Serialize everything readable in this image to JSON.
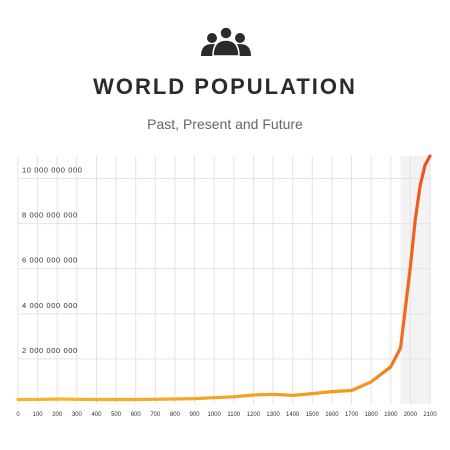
{
  "header": {
    "icon": "people-group-icon",
    "title": "WORLD POPULATION",
    "subtitle": "Past, Present and Future"
  },
  "chart_data": {
    "type": "line",
    "title": "WORLD POPULATION",
    "subtitle": "Past, Present and Future",
    "xlabel": "",
    "ylabel": "",
    "x_ticks": [
      "0",
      "100",
      "200",
      "300",
      "400",
      "500",
      "600",
      "700",
      "800",
      "900",
      "1000",
      "1100",
      "1200",
      "1300",
      "1400",
      "1500",
      "1600",
      "1700",
      "1800",
      "1900",
      "2000",
      "2100"
    ],
    "y_ticks": [
      "2 000 000 000",
      "4 000 000 000",
      "6 000 000 000",
      "8 000 000 000",
      "10 000 000 000"
    ],
    "xlim": [
      0,
      2100
    ],
    "ylim": [
      0,
      11000000000
    ],
    "grid": true,
    "highlight_region": [
      1950,
      2100
    ],
    "colors": {
      "line_start": "#f5b82e",
      "line_end": "#e8361f",
      "grid": "#e3e3e3",
      "highlight": "#f3f3f3"
    },
    "series": [
      {
        "x": [
          0,
          100,
          200,
          300,
          400,
          500,
          600,
          700,
          800,
          900,
          1000,
          1100,
          1200,
          1300,
          1400,
          1500,
          1600,
          1700,
          1800,
          1900,
          1950,
          2000,
          2025,
          2050,
          2075,
          2100
        ],
        "values": [
          200000000,
          200000000,
          220000000,
          210000000,
          200000000,
          200000000,
          200000000,
          210000000,
          220000000,
          240000000,
          280000000,
          320000000,
          400000000,
          430000000,
          380000000,
          460000000,
          550000000,
          600000000,
          980000000,
          1650000000,
          2500000000,
          6100000000,
          8200000000,
          9700000000,
          10600000000,
          11000000000
        ]
      }
    ]
  }
}
